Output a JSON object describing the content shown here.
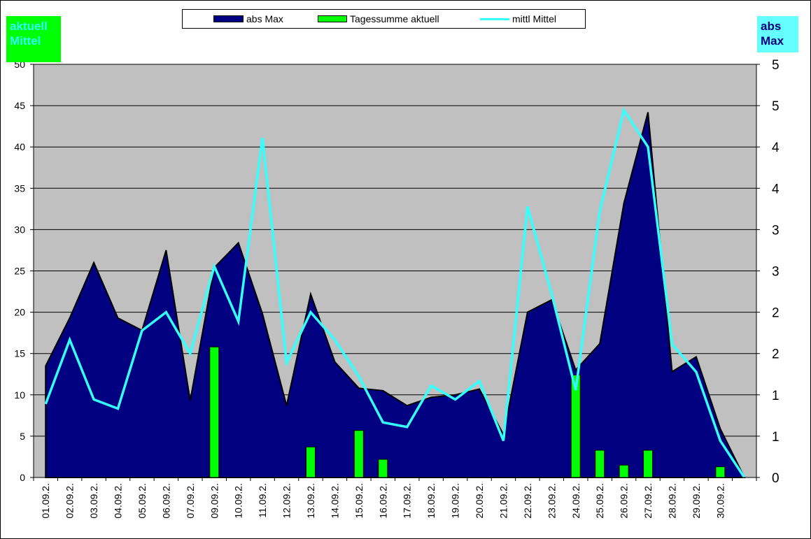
{
  "chart_data": {
    "type": "area",
    "categories": [
      "01.09.2.",
      "02.09.2.",
      "03.09.2.",
      "04.09.2.",
      "05.09.2.",
      "06.09.2.",
      "07.09.2.",
      "09.09.2.",
      "10.09.2.",
      "11.09.2.",
      "12.09.2.",
      "13.09.2.",
      "14.09.2.",
      "15.09.2.",
      "16.09.2.",
      "17.09.2.",
      "18.09.2.",
      "19.09.2.",
      "20.09.2.",
      "21.09.2.",
      "22.09.2.",
      "23.09.2.",
      "24.09.2.",
      "25.09.2.",
      "26.09.2.",
      "27.09.2.",
      "28.09.2.",
      "29.09.2.",
      "30.09.2.",
      ""
    ],
    "series": [
      {
        "name": "abs Max",
        "kind": "area",
        "axis": "left",
        "values": [
          13.5,
          19.3,
          26.0,
          19.3,
          17.8,
          27.5,
          9.3,
          25.4,
          28.4,
          19.8,
          8.7,
          22.2,
          14.0,
          10.8,
          10.5,
          8.7,
          9.7,
          10.0,
          10.7,
          5.2,
          20.0,
          21.5,
          13.0,
          16.2,
          33.2,
          44.2,
          12.8,
          14.6,
          5.9,
          0
        ]
      },
      {
        "name": "Tagessumme aktuell",
        "kind": "bar",
        "axis": "left",
        "values": [
          0,
          0,
          0,
          0,
          0,
          0,
          0,
          15.8,
          0,
          0,
          0,
          3.7,
          0,
          5.7,
          2.2,
          0,
          0,
          0,
          0,
          0,
          0,
          0,
          12.4,
          3.3,
          1.5,
          3.3,
          0,
          0,
          1.3,
          0
        ]
      },
      {
        "name": "mittl Mittel",
        "kind": "line",
        "axis": "right",
        "values": [
          0.8,
          1.5,
          0.85,
          0.75,
          1.6,
          1.8,
          1.35,
          2.3,
          1.7,
          3.7,
          1.25,
          1.8,
          1.5,
          1.1,
          0.6,
          0.55,
          1.0,
          0.85,
          1.05,
          0.4,
          2.95,
          2.0,
          0.95,
          2.9,
          4.0,
          3.6,
          1.45,
          1.15,
          0.4,
          0
        ]
      }
    ],
    "y_left": {
      "ticks": [
        "0",
        "5",
        "10",
        "15",
        "20",
        "25",
        "30",
        "35",
        "40",
        "45",
        "50"
      ],
      "ylim": [
        0,
        50
      ]
    },
    "y_right": {
      "ticks": [
        "0",
        "1",
        "1",
        "2",
        "2",
        "3",
        "3",
        "4",
        "4",
        "5",
        "5"
      ],
      "ylim": [
        0,
        4.5
      ]
    },
    "grid": true,
    "legend_placement": "top-center",
    "colors": {
      "area": "#000080",
      "bar": "#00ff00",
      "line": "#33ffff",
      "plot_bg": "#c0c0c0"
    }
  },
  "legend": {
    "area_label": "abs Max",
    "bar_label": "Tagessumme aktuell",
    "line_label": "mittl Mittel"
  },
  "badges": {
    "left": "aktuell Mittel",
    "right": "abs Max"
  }
}
